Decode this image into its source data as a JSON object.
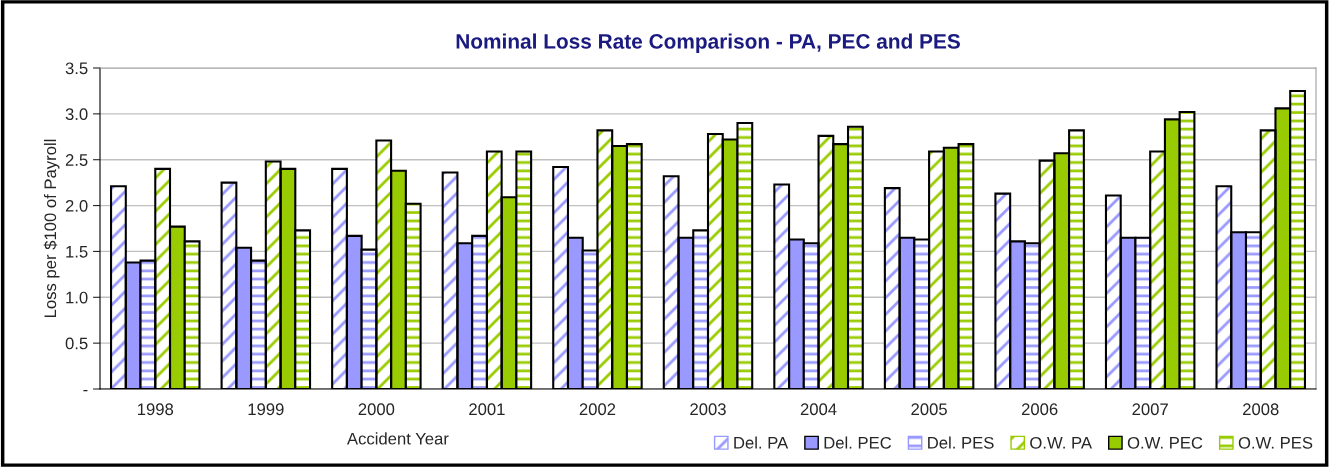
{
  "chart_data": {
    "type": "bar",
    "title": "Nominal Loss Rate Comparison - PA, PEC and PES",
    "xlabel": "Accident Year",
    "ylabel": "Loss per $100 of Payroll",
    "categories": [
      "1998",
      "1999",
      "2000",
      "2001",
      "2002",
      "2003",
      "2004",
      "2005",
      "2006",
      "2007",
      "2008"
    ],
    "series": [
      {
        "name": "Del. PA",
        "color": "#9999ff",
        "values": [
          2.21,
          2.25,
          2.4,
          2.36,
          2.42,
          2.32,
          2.23,
          2.19,
          2.13,
          2.11,
          2.21
        ]
      },
      {
        "name": "Del. PEC",
        "color": "#9999ff",
        "values": [
          1.38,
          1.54,
          1.67,
          1.59,
          1.65,
          1.65,
          1.63,
          1.65,
          1.61,
          1.65,
          1.71
        ]
      },
      {
        "name": "Del. PES",
        "color": "#9999ff",
        "values": [
          1.4,
          1.4,
          1.52,
          1.67,
          1.51,
          1.73,
          1.59,
          1.63,
          1.59,
          1.65,
          1.71
        ]
      },
      {
        "name": "O.W. PA",
        "color": "#99cc00",
        "values": [
          2.4,
          2.48,
          2.71,
          2.59,
          2.82,
          2.78,
          2.76,
          2.59,
          2.49,
          2.59,
          2.82
        ]
      },
      {
        "name": "O.W. PEC",
        "color": "#99cc00",
        "values": [
          1.77,
          2.4,
          2.38,
          2.09,
          2.65,
          2.72,
          2.67,
          2.63,
          2.57,
          2.94,
          3.06
        ]
      },
      {
        "name": "O.W. PES",
        "color": "#99cc00",
        "values": [
          1.61,
          1.73,
          2.02,
          2.59,
          2.67,
          2.9,
          2.86,
          2.67,
          2.82,
          3.02,
          3.25
        ]
      }
    ],
    "ylim": [
      0,
      3.5
    ],
    "yticks": [
      {
        "value": 0,
        "label": "-"
      },
      {
        "value": 0.5,
        "label": "0.5"
      },
      {
        "value": 1.0,
        "label": "1.0"
      },
      {
        "value": 1.5,
        "label": "1.5"
      },
      {
        "value": 2.0,
        "label": "2.0"
      },
      {
        "value": 2.5,
        "label": "2.5"
      },
      {
        "value": 3.0,
        "label": "3.0"
      },
      {
        "value": 3.5,
        "label": "3.5"
      }
    ],
    "grid": "y",
    "legend": "bottom right"
  }
}
